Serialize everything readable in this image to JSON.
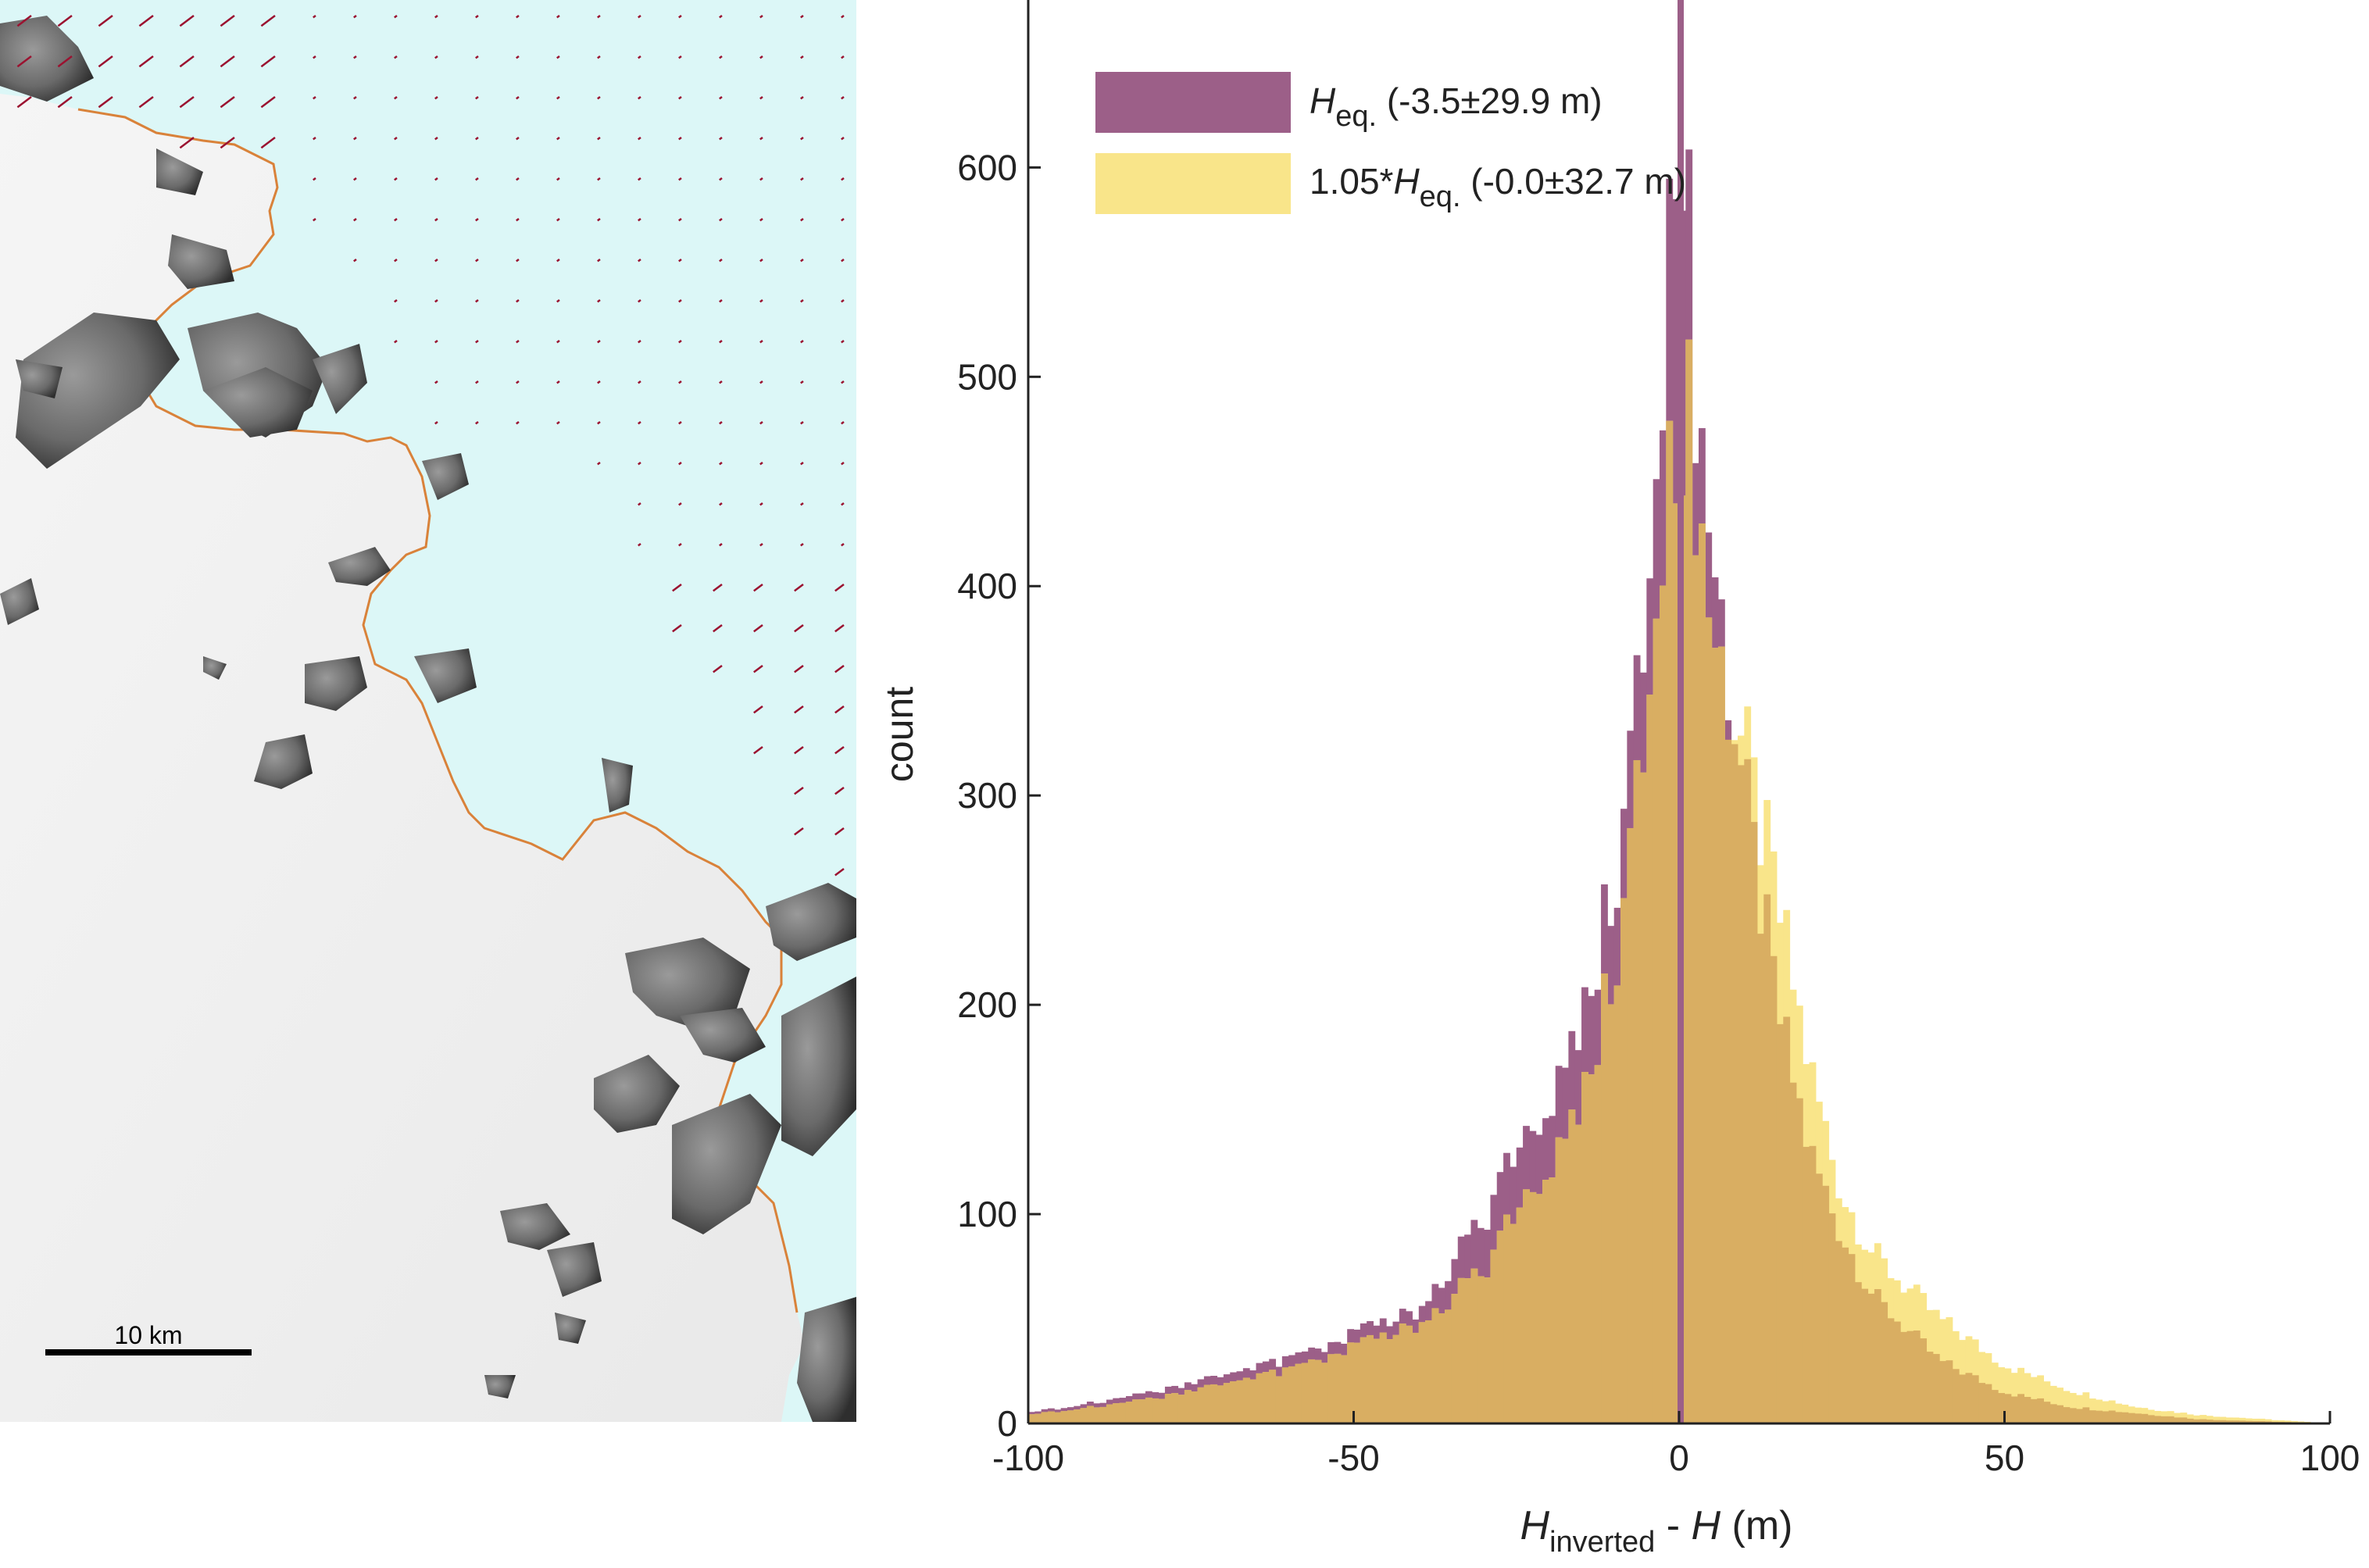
{
  "map": {
    "scale_label": "10 km",
    "colors": {
      "ice": "#dcf8f8",
      "land": "#eeeeee",
      "rock": "#6f6f6f",
      "rock_dark": "#2a2a2a",
      "grounding_line": "#d9823a",
      "velocity_arrow": "#9b1230"
    }
  },
  "chart_data": {
    "type": "histogram",
    "xlabel": {
      "main": "H",
      "sub": "inverted",
      "rest": " - ",
      "main2": "H",
      "unit": " (m)"
    },
    "ylabel": "count",
    "xlim": [
      -100,
      100
    ],
    "ylim": [
      0,
      680
    ],
    "xticks": [
      -100,
      -50,
      0,
      50,
      100
    ],
    "yticks": [
      0,
      100,
      200,
      300,
      400,
      500,
      600
    ],
    "grid": false,
    "legend_placement": "top-left",
    "bin_width": 1,
    "series": [
      {
        "name": "H_eq.",
        "legend": {
          "main": "H",
          "sub": "eq.",
          "rest": " (-3.5±29.9 m)"
        },
        "color": "#9c5f88",
        "mean": -3.5,
        "std": 29.9,
        "peak_count": 685,
        "approx_counts": [
          {
            "x": -100,
            "y": 5
          },
          {
            "x": -80,
            "y": 15
          },
          {
            "x": -60,
            "y": 30
          },
          {
            "x": -40,
            "y": 55
          },
          {
            "x": -30,
            "y": 100
          },
          {
            "x": -20,
            "y": 150
          },
          {
            "x": -15,
            "y": 200
          },
          {
            "x": -10,
            "y": 260
          },
          {
            "x": -5,
            "y": 380
          },
          {
            "x": -2,
            "y": 500
          },
          {
            "x": 0,
            "y": 685
          },
          {
            "x": 2,
            "y": 520
          },
          {
            "x": 5,
            "y": 420
          },
          {
            "x": 10,
            "y": 300
          },
          {
            "x": 15,
            "y": 200
          },
          {
            "x": 20,
            "y": 130
          },
          {
            "x": 25,
            "y": 90
          },
          {
            "x": 30,
            "y": 60
          },
          {
            "x": 40,
            "y": 30
          },
          {
            "x": 50,
            "y": 15
          },
          {
            "x": 60,
            "y": 8
          },
          {
            "x": 80,
            "y": 2
          },
          {
            "x": 100,
            "y": 0
          }
        ]
      },
      {
        "name": "1.05*H_eq.",
        "legend": {
          "pre": "1.05*",
          "main": "H",
          "sub": "eq.",
          "rest": " (-0.0±32.7 m)"
        },
        "color": "#f6d44a",
        "mean": 0.0,
        "std": 32.7,
        "peak_count": 500,
        "approx_counts": [
          {
            "x": -100,
            "y": 4
          },
          {
            "x": -80,
            "y": 12
          },
          {
            "x": -60,
            "y": 25
          },
          {
            "x": -40,
            "y": 48
          },
          {
            "x": -30,
            "y": 75
          },
          {
            "x": -20,
            "y": 120
          },
          {
            "x": -15,
            "y": 160
          },
          {
            "x": -10,
            "y": 220
          },
          {
            "x": -5,
            "y": 330
          },
          {
            "x": -2,
            "y": 420
          },
          {
            "x": 0,
            "y": 500
          },
          {
            "x": 2,
            "y": 470
          },
          {
            "x": 5,
            "y": 380
          },
          {
            "x": 10,
            "y": 320
          },
          {
            "x": 15,
            "y": 250
          },
          {
            "x": 20,
            "y": 170
          },
          {
            "x": 25,
            "y": 110
          },
          {
            "x": 30,
            "y": 80
          },
          {
            "x": 40,
            "y": 50
          },
          {
            "x": 50,
            "y": 28
          },
          {
            "x": 60,
            "y": 16
          },
          {
            "x": 70,
            "y": 8
          },
          {
            "x": 80,
            "y": 4
          },
          {
            "x": 100,
            "y": 0
          }
        ]
      }
    ],
    "overlap_color": "#d9ae62"
  }
}
